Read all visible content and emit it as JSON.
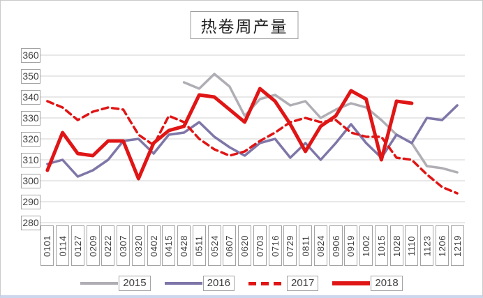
{
  "header": {
    "title": "热卷周产量"
  },
  "colors": {
    "grid": "#d9d9d9",
    "box_border": "#a3a3a3",
    "frame_border": "#c9c9c9",
    "frame_bottom": "#ccd6ec",
    "series_2015": "#b0aeb4",
    "series_2016": "#7f76a8",
    "series_2017": "#e01515",
    "series_2018": "#e01515"
  },
  "chart_data": {
    "type": "line",
    "title": "热卷周产量",
    "xlabel": "",
    "ylabel": "",
    "ylim": [
      280,
      360
    ],
    "yticks": [
      360,
      350,
      340,
      330,
      320,
      310,
      300,
      290,
      280
    ],
    "grid": true,
    "legend_position": "bottom",
    "categories": [
      "0101",
      "0114",
      "0127",
      "0209",
      "0222",
      "0307",
      "0320",
      "0402",
      "0415",
      "0428",
      "0511",
      "0524",
      "0607",
      "0620",
      "0703",
      "0716",
      "0729",
      "0811",
      "0824",
      "0906",
      "0919",
      "1002",
      "1015",
      "1028",
      "1110",
      "1123",
      "1206",
      "1219"
    ],
    "series": [
      {
        "name": "2015",
        "color": "#b0aeb4",
        "style": "solid",
        "width": 3.5,
        "values": [
          null,
          null,
          null,
          null,
          null,
          null,
          null,
          null,
          null,
          347,
          344,
          351,
          345,
          331,
          339,
          341,
          336,
          338,
          330,
          334,
          337,
          335,
          329,
          322,
          318,
          307,
          306,
          304
        ]
      },
      {
        "name": "2016",
        "color": "#7f76a8",
        "style": "solid",
        "width": 3.5,
        "values": [
          308,
          310,
          302,
          305,
          310,
          319,
          320,
          313,
          322,
          323,
          328,
          321,
          316,
          312,
          318,
          320,
          311,
          318,
          310,
          318,
          327,
          318,
          311,
          322,
          318,
          330,
          329,
          336
        ]
      },
      {
        "name": "2017",
        "color": "#e01515",
        "style": "dashed",
        "width": 3.5,
        "values": [
          338,
          335,
          329,
          333,
          335,
          334,
          322,
          317,
          331,
          328,
          320,
          315,
          312,
          314,
          319,
          323,
          328,
          330,
          328,
          329,
          323,
          321,
          321,
          311,
          310,
          303,
          297,
          294
        ]
      },
      {
        "name": "2018",
        "color": "#e01515",
        "style": "solid",
        "width": 5,
        "values": [
          305,
          323,
          313,
          312,
          319,
          319,
          301,
          318,
          324,
          326,
          341,
          340,
          334,
          328,
          344,
          338,
          327,
          314,
          326,
          331,
          343,
          339,
          310,
          338,
          337,
          null,
          null,
          null
        ]
      }
    ]
  }
}
